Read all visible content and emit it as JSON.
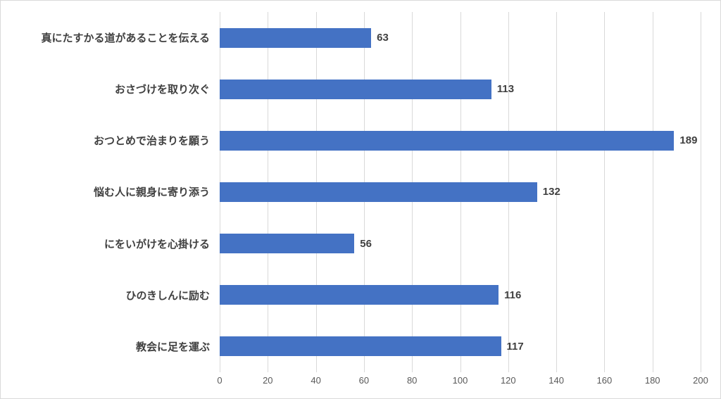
{
  "chart_data": {
    "type": "bar",
    "orientation": "horizontal",
    "title": "",
    "xlabel": "",
    "ylabel": "",
    "categories": [
      "真にたすかる道があることを伝える",
      "おさづけを取り次ぐ",
      "おつとめで治まりを願う",
      "悩む人に親身に寄り添う",
      "にをいがけを心掛ける",
      "ひのきしんに励む",
      "教会に足を運ぶ"
    ],
    "values": [
      63,
      113,
      189,
      132,
      56,
      116,
      117
    ],
    "data_labels": [
      "63",
      "113",
      "189",
      "132",
      "56",
      "116",
      "117"
    ],
    "xlim": [
      0,
      200
    ],
    "x_ticks": [
      "0",
      "20",
      "40",
      "60",
      "80",
      "100",
      "120",
      "140",
      "160",
      "180",
      "200"
    ],
    "grid": true,
    "legend": false,
    "colors": {
      "bar": "#4472c4",
      "gridline": "#d9d9d9",
      "tick_label": "#595959",
      "category_label": "#404040",
      "value_label": "#404040",
      "background": "#ffffff",
      "frame_border": "#d9d9d9"
    }
  }
}
